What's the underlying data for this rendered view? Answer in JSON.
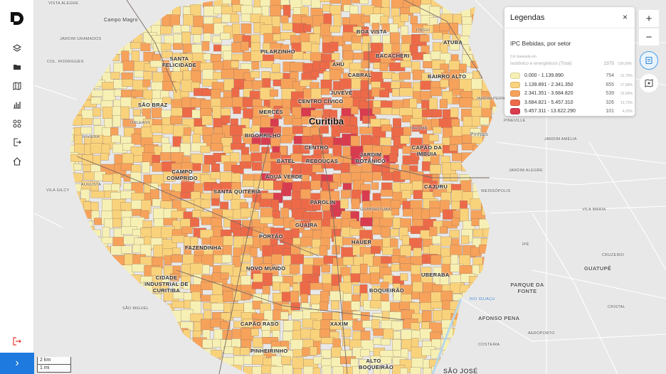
{
  "sidebar": {
    "logo": "D",
    "icons": [
      "layers-icon",
      "folder-icon",
      "map-icon",
      "chart-icon",
      "grid-icon",
      "export-icon",
      "home-icon"
    ],
    "logout_icon": "logout-icon",
    "expand_label": "›"
  },
  "map": {
    "city_label": "Curitiba",
    "neighborhoods": [
      "Boa Vista",
      "Atuba",
      "Pilarzinho",
      "Bacacheri",
      "Santa Felicidade",
      "Ahú",
      "Cabral",
      "Bairro Alto",
      "Juvevê",
      "Centro Cívico",
      "São Braz",
      "Mercês",
      "Bigorrilho",
      "Centro",
      "Capão da Imbuia",
      "Batel",
      "Rebouças",
      "Jardim Botânico",
      "Campo Comprido",
      "Água Verde",
      "Cajuru",
      "Santa Quitéria",
      "Parolin",
      "Guaíra",
      "Portão",
      "Fazendinha",
      "Hauer",
      "Novo Mundo",
      "Uberaba",
      "Cidade Industrial de Curitiba",
      "Boqueirão",
      "Capão Raso",
      "Xaxim",
      "Pinheirinho",
      "Alto Boqueirão",
      "Parque da Fonte",
      "Guatupê",
      "Afonso Pena",
      "São José"
    ],
    "places": [
      "Vista Alegre",
      "Campo Magro",
      "Jardim Gramados",
      "Col. Rodrigues",
      "Riviera",
      "Orleans",
      "Augusta",
      "Vila Gilcy",
      "São Miguel",
      "Pinhais",
      "Weissópolis",
      "Vila Maria",
      "Cruzeiro",
      "Cristal",
      "Jardim Amélia",
      "Jardim Alegre",
      "Jardim Pernetá",
      "Pineville",
      "Tingui",
      "Tarumã",
      "Guabirotuba",
      "Ipê",
      "Costeira",
      "Aeroporto",
      "Rio Iguaçu"
    ],
    "scale": {
      "km": "2 km",
      "mi": "1 mi"
    }
  },
  "legend": {
    "header": "Legendas",
    "close": "×",
    "title": "IPC Bebidas, por setor",
    "sub": "Cor baseada em",
    "variable": "Isotônico e energéticos (Total)",
    "total": "2375",
    "total_pct": "100,00%",
    "rows": [
      {
        "range": "0.000 - 1.139.890",
        "count": "754",
        "pct": "31,75%",
        "color": "#f6f0b4"
      },
      {
        "range": "1.139.891 - 2.341.350",
        "count": "655",
        "pct": "27,58%",
        "color": "#f9d27c"
      },
      {
        "range": "2.341.351 - 3.684.820",
        "count": "539",
        "pct": "22,69%",
        "color": "#f6a25b"
      },
      {
        "range": "3.684.821 - 5.457.310",
        "count": "326",
        "pct": "13,73%",
        "color": "#ed6a49"
      },
      {
        "range": "5.457.311 - 13.622.290",
        "count": "101",
        "pct": "4,25%",
        "color": "#d93b4f"
      }
    ]
  },
  "controls": {
    "zoom_in": "+",
    "zoom_out": "−"
  },
  "colors": {
    "water": "#b9d6ea",
    "background": "#e8e8e8",
    "accent": "#1f7ae0"
  }
}
